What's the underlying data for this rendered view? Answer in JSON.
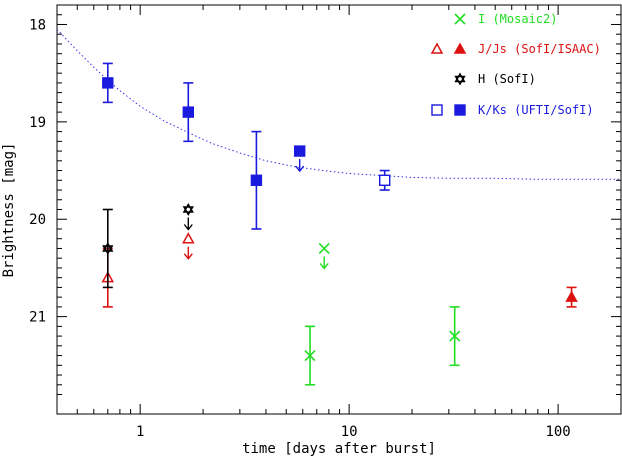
{
  "chart_data": {
    "type": "scatter",
    "title": "",
    "xlabel": "time [days after burst]",
    "ylabel": "Brightness [mag]",
    "x_scale": "log",
    "xlim": [
      0.4,
      200
    ],
    "ylim": [
      22,
      17.8
    ],
    "y_inverted": true,
    "x_ticks": [
      1,
      10,
      100
    ],
    "y_ticks": [
      18,
      19,
      20,
      21
    ],
    "grid": false,
    "legend_position": "top-right",
    "series": [
      {
        "name": "I (Mosaic2)",
        "color": "#22dd22",
        "marker": "x",
        "points": [
          {
            "x": 6.5,
            "y": 21.4,
            "err": 0.3
          },
          {
            "x": 32,
            "y": 21.2,
            "err": 0.3
          }
        ],
        "upper_limits": [
          {
            "x": 7.6,
            "y": 20.3
          }
        ]
      },
      {
        "name": "J/Js (SofI/ISAAC)",
        "color": "#dd1111",
        "marker_open": "triangle-open",
        "marker_filled": "triangle-filled",
        "points": [
          {
            "x": 0.7,
            "y": 20.6,
            "err": 0.3,
            "filled": false
          },
          {
            "x": 116,
            "y": 20.8,
            "err": 0.1,
            "filled": true
          }
        ],
        "upper_limits": [
          {
            "x": 1.7,
            "y": 20.2,
            "filled": false
          }
        ]
      },
      {
        "name": "H (SofI)",
        "color": "#000000",
        "marker": "star-open",
        "points": [
          {
            "x": 0.7,
            "y": 20.3,
            "err": 0.4
          }
        ],
        "upper_limits": [
          {
            "x": 1.7,
            "y": 19.9
          }
        ]
      },
      {
        "name": "K/Ks (UFTI/SofI)",
        "color": "#1a1adf",
        "marker_open": "square-open",
        "marker_filled": "square-filled",
        "points": [
          {
            "x": 0.7,
            "y": 18.6,
            "err": 0.2,
            "filled": true
          },
          {
            "x": 1.7,
            "y": 18.9,
            "err": 0.3,
            "filled": true
          },
          {
            "x": 3.6,
            "y": 19.6,
            "err": 0.5,
            "filled": true
          },
          {
            "x": 14.8,
            "y": 19.6,
            "err": 0.1,
            "filled": false
          }
        ],
        "upper_limits": [
          {
            "x": 5.8,
            "y": 19.3,
            "filled": true
          }
        ]
      }
    ],
    "fit_curve": {
      "color": "#3333ee",
      "style": "dotted",
      "x": [
        0.4,
        0.5,
        0.6,
        0.7,
        0.8,
        1.0,
        1.3,
        1.7,
        2.2,
        3.0,
        4.0,
        5.5,
        7.5,
        10,
        14,
        20,
        30,
        50,
        80,
        120,
        200
      ],
      "y": [
        18.05,
        18.27,
        18.44,
        18.57,
        18.68,
        18.84,
        18.99,
        19.11,
        19.22,
        19.32,
        19.4,
        19.46,
        19.5,
        19.53,
        19.55,
        19.57,
        19.58,
        19.58,
        19.59,
        19.59,
        19.59
      ]
    }
  }
}
